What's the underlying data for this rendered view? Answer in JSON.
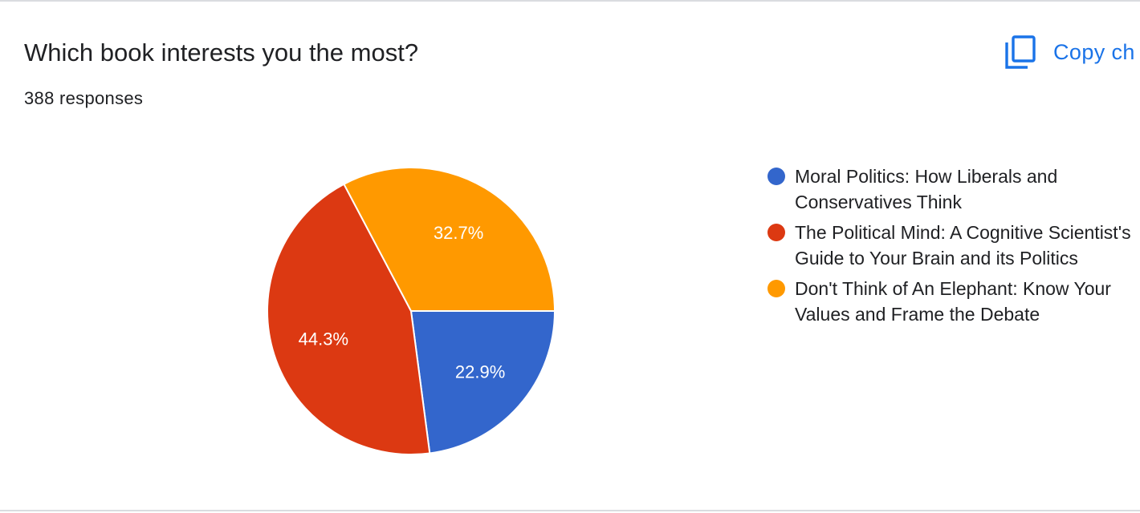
{
  "question": {
    "title": "Which book interests you the most?",
    "responses": "388 responses"
  },
  "toolbar": {
    "copy_label": "Copy ch",
    "copy_icon": "copy-icon",
    "accent": "#1a73e8"
  },
  "chart_data": {
    "type": "pie",
    "title": "",
    "slices": [
      {
        "label": "Moral Politics: How Liberals and Conservatives Think",
        "percent": 22.9,
        "display": "22.9%",
        "color": "#3366cc"
      },
      {
        "label": "The Political Mind: A Cognitive Scientist's Guide to Your Brain and its Politics",
        "percent": 44.3,
        "display": "44.3%",
        "color": "#dc3912"
      },
      {
        "label": "Don't Think of An Elephant: Know Your Values and Frame the Debate",
        "percent": 32.7,
        "display": "32.7%",
        "color": "#ff9900"
      }
    ],
    "legend_position": "right"
  }
}
